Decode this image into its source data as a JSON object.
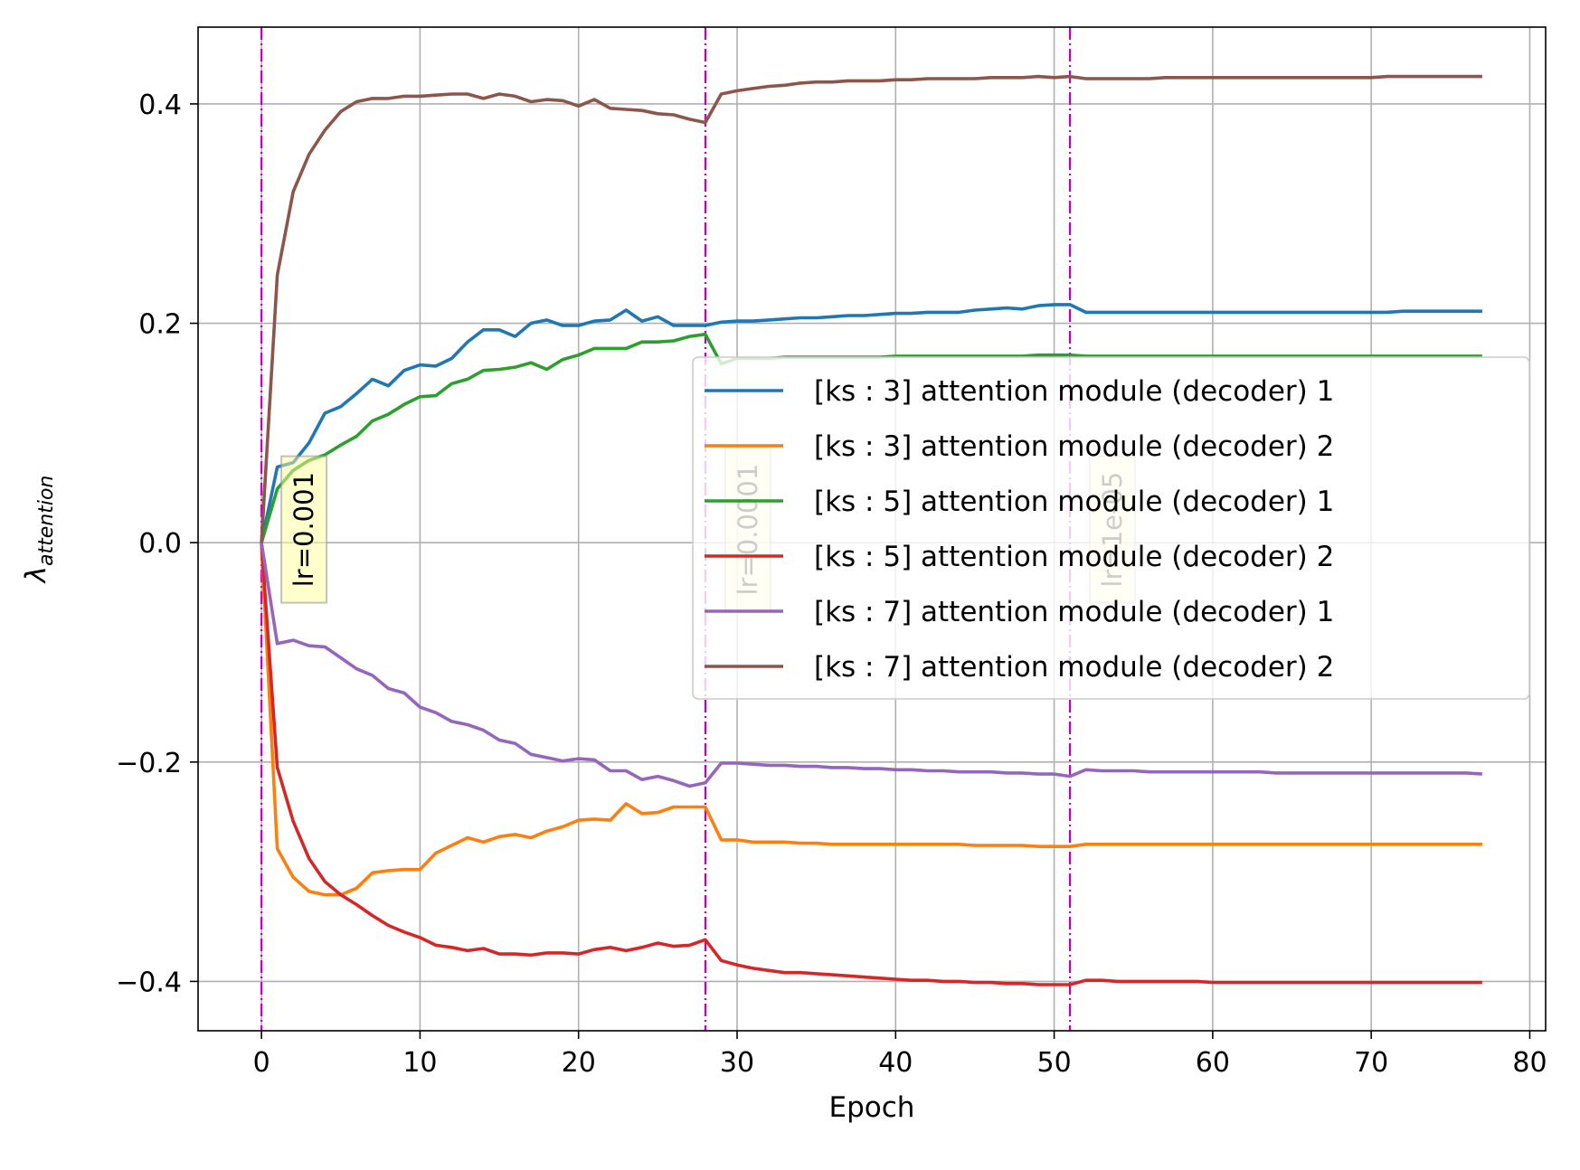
{
  "chart_data": {
    "type": "line",
    "title": "",
    "xlabel": "Epoch",
    "ylabel_main": "λ",
    "ylabel_sub": "attention",
    "xlim": [
      -4,
      81
    ],
    "ylim": [
      -0.445,
      0.47
    ],
    "xticks": [
      0,
      10,
      20,
      30,
      40,
      50,
      60,
      70,
      80
    ],
    "yticks": [
      -0.4,
      -0.2,
      0.0,
      0.2,
      0.4
    ],
    "ytick_labels": [
      "−0.4",
      "−0.2",
      "0.0",
      "0.2",
      "0.4"
    ],
    "grid": true,
    "legend_position": "center-right",
    "x": [
      0,
      1,
      2,
      3,
      4,
      5,
      6,
      7,
      8,
      9,
      10,
      11,
      12,
      13,
      14,
      15,
      16,
      17,
      18,
      19,
      20,
      21,
      22,
      23,
      24,
      25,
      26,
      27,
      28,
      29,
      30,
      31,
      32,
      33,
      34,
      35,
      36,
      37,
      38,
      39,
      40,
      41,
      42,
      43,
      44,
      45,
      46,
      47,
      48,
      49,
      50,
      51,
      52,
      53,
      54,
      55,
      56,
      57,
      58,
      59,
      60,
      61,
      62,
      63,
      64,
      65,
      66,
      67,
      68,
      69,
      70,
      71,
      72,
      73,
      74,
      75,
      76,
      77
    ],
    "series": [
      {
        "name": "[ks : 3] attention module (decoder) 1",
        "color": "#1f77b4",
        "values": [
          0,
          0.069,
          0.073,
          0.091,
          0.118,
          0.124,
          0.136,
          0.149,
          0.143,
          0.157,
          0.162,
          0.161,
          0.168,
          0.183,
          0.194,
          0.194,
          0.188,
          0.2,
          0.203,
          0.198,
          0.198,
          0.202,
          0.203,
          0.212,
          0.202,
          0.206,
          0.198,
          0.198,
          0.198,
          0.201,
          0.202,
          0.202,
          0.203,
          0.204,
          0.205,
          0.205,
          0.206,
          0.207,
          0.207,
          0.208,
          0.209,
          0.209,
          0.21,
          0.21,
          0.21,
          0.212,
          0.213,
          0.214,
          0.213,
          0.216,
          0.217,
          0.217,
          0.21,
          0.21,
          0.21,
          0.21,
          0.21,
          0.21,
          0.21,
          0.21,
          0.21,
          0.21,
          0.21,
          0.21,
          0.21,
          0.21,
          0.21,
          0.21,
          0.21,
          0.21,
          0.21,
          0.21,
          0.211,
          0.211,
          0.211,
          0.211,
          0.211,
          0.211
        ]
      },
      {
        "name": "[ks : 3] attention module (decoder) 2",
        "color": "#ff7f0e",
        "values": [
          0,
          -0.279,
          -0.305,
          -0.318,
          -0.321,
          -0.321,
          -0.315,
          -0.301,
          -0.299,
          -0.298,
          -0.298,
          -0.283,
          -0.276,
          -0.269,
          -0.273,
          -0.268,
          -0.266,
          -0.269,
          -0.263,
          -0.259,
          -0.253,
          -0.252,
          -0.253,
          -0.238,
          -0.247,
          -0.246,
          -0.241,
          -0.241,
          -0.241,
          -0.271,
          -0.271,
          -0.273,
          -0.273,
          -0.273,
          -0.274,
          -0.274,
          -0.275,
          -0.275,
          -0.275,
          -0.275,
          -0.275,
          -0.275,
          -0.275,
          -0.275,
          -0.275,
          -0.276,
          -0.276,
          -0.276,
          -0.276,
          -0.277,
          -0.277,
          -0.277,
          -0.275,
          -0.275,
          -0.275,
          -0.275,
          -0.275,
          -0.275,
          -0.275,
          -0.275,
          -0.275,
          -0.275,
          -0.275,
          -0.275,
          -0.275,
          -0.275,
          -0.275,
          -0.275,
          -0.275,
          -0.275,
          -0.275,
          -0.275,
          -0.275,
          -0.275,
          -0.275,
          -0.275,
          -0.275,
          -0.275
        ]
      },
      {
        "name": "[ks : 5] attention module (decoder) 1",
        "color": "#2ca02c",
        "values": [
          0,
          0.049,
          0.066,
          0.075,
          0.08,
          0.089,
          0.097,
          0.111,
          0.117,
          0.126,
          0.133,
          0.134,
          0.145,
          0.149,
          0.157,
          0.158,
          0.16,
          0.164,
          0.158,
          0.167,
          0.171,
          0.177,
          0.177,
          0.177,
          0.183,
          0.183,
          0.184,
          0.188,
          0.19,
          0.163,
          0.168,
          0.168,
          0.168,
          0.169,
          0.169,
          0.169,
          0.169,
          0.169,
          0.169,
          0.169,
          0.17,
          0.17,
          0.17,
          0.17,
          0.17,
          0.17,
          0.17,
          0.17,
          0.17,
          0.171,
          0.171,
          0.171,
          0.17,
          0.17,
          0.17,
          0.17,
          0.17,
          0.17,
          0.17,
          0.17,
          0.17,
          0.17,
          0.17,
          0.17,
          0.17,
          0.17,
          0.17,
          0.17,
          0.17,
          0.17,
          0.17,
          0.17,
          0.17,
          0.17,
          0.17,
          0.17,
          0.17,
          0.17
        ]
      },
      {
        "name": "[ks : 5] attention module (decoder) 2",
        "color": "#d62728",
        "values": [
          0,
          -0.205,
          -0.254,
          -0.288,
          -0.309,
          -0.321,
          -0.33,
          -0.34,
          -0.349,
          -0.355,
          -0.36,
          -0.367,
          -0.369,
          -0.372,
          -0.37,
          -0.375,
          -0.375,
          -0.376,
          -0.374,
          -0.374,
          -0.375,
          -0.371,
          -0.369,
          -0.372,
          -0.369,
          -0.365,
          -0.368,
          -0.367,
          -0.362,
          -0.381,
          -0.385,
          -0.388,
          -0.39,
          -0.392,
          -0.392,
          -0.393,
          -0.394,
          -0.395,
          -0.396,
          -0.397,
          -0.398,
          -0.399,
          -0.399,
          -0.4,
          -0.4,
          -0.401,
          -0.401,
          -0.402,
          -0.402,
          -0.403,
          -0.403,
          -0.403,
          -0.399,
          -0.399,
          -0.4,
          -0.4,
          -0.4,
          -0.4,
          -0.4,
          -0.4,
          -0.401,
          -0.401,
          -0.401,
          -0.401,
          -0.401,
          -0.401,
          -0.401,
          -0.401,
          -0.401,
          -0.401,
          -0.401,
          -0.401,
          -0.401,
          -0.401,
          -0.401,
          -0.401,
          -0.401,
          -0.401
        ]
      },
      {
        "name": "[ks : 7] attention module (decoder) 1",
        "color": "#9467bd",
        "values": [
          0,
          -0.092,
          -0.089,
          -0.094,
          -0.095,
          -0.105,
          -0.115,
          -0.121,
          -0.133,
          -0.137,
          -0.15,
          -0.155,
          -0.163,
          -0.166,
          -0.171,
          -0.18,
          -0.183,
          -0.193,
          -0.196,
          -0.199,
          -0.197,
          -0.198,
          -0.208,
          -0.208,
          -0.216,
          -0.213,
          -0.217,
          -0.222,
          -0.219,
          -0.201,
          -0.201,
          -0.202,
          -0.203,
          -0.203,
          -0.204,
          -0.204,
          -0.205,
          -0.205,
          -0.206,
          -0.206,
          -0.207,
          -0.207,
          -0.208,
          -0.208,
          -0.209,
          -0.209,
          -0.209,
          -0.21,
          -0.21,
          -0.211,
          -0.211,
          -0.213,
          -0.207,
          -0.208,
          -0.208,
          -0.208,
          -0.209,
          -0.209,
          -0.209,
          -0.209,
          -0.209,
          -0.209,
          -0.209,
          -0.209,
          -0.21,
          -0.21,
          -0.21,
          -0.21,
          -0.21,
          -0.21,
          -0.21,
          -0.21,
          -0.21,
          -0.21,
          -0.21,
          -0.21,
          -0.21,
          -0.211
        ]
      },
      {
        "name": "[ks : 7] attention module (decoder) 2",
        "color": "#8c564b",
        "values": [
          0,
          0.244,
          0.32,
          0.354,
          0.376,
          0.393,
          0.402,
          0.405,
          0.405,
          0.407,
          0.407,
          0.408,
          0.409,
          0.409,
          0.405,
          0.409,
          0.407,
          0.402,
          0.404,
          0.403,
          0.398,
          0.404,
          0.396,
          0.395,
          0.394,
          0.391,
          0.39,
          0.386,
          0.383,
          0.409,
          0.412,
          0.414,
          0.416,
          0.417,
          0.419,
          0.42,
          0.42,
          0.421,
          0.421,
          0.421,
          0.422,
          0.422,
          0.423,
          0.423,
          0.423,
          0.423,
          0.424,
          0.424,
          0.424,
          0.425,
          0.424,
          0.425,
          0.423,
          0.423,
          0.423,
          0.423,
          0.423,
          0.424,
          0.424,
          0.424,
          0.424,
          0.424,
          0.424,
          0.424,
          0.424,
          0.424,
          0.424,
          0.424,
          0.424,
          0.424,
          0.424,
          0.425,
          0.425,
          0.425,
          0.425,
          0.425,
          0.425,
          0.425
        ]
      }
    ],
    "lr_markers": [
      {
        "epoch": 0,
        "label": "lr=0.001",
        "anchor_y": 0.012
      },
      {
        "epoch": 28,
        "label": "lr=0.0001",
        "anchor_y": 0.012
      },
      {
        "epoch": 51,
        "label": "lr=1e-05",
        "anchor_y": 0.012
      }
    ],
    "marker_color": "#bf00bf",
    "annotation_box_color": "#ffff99"
  }
}
